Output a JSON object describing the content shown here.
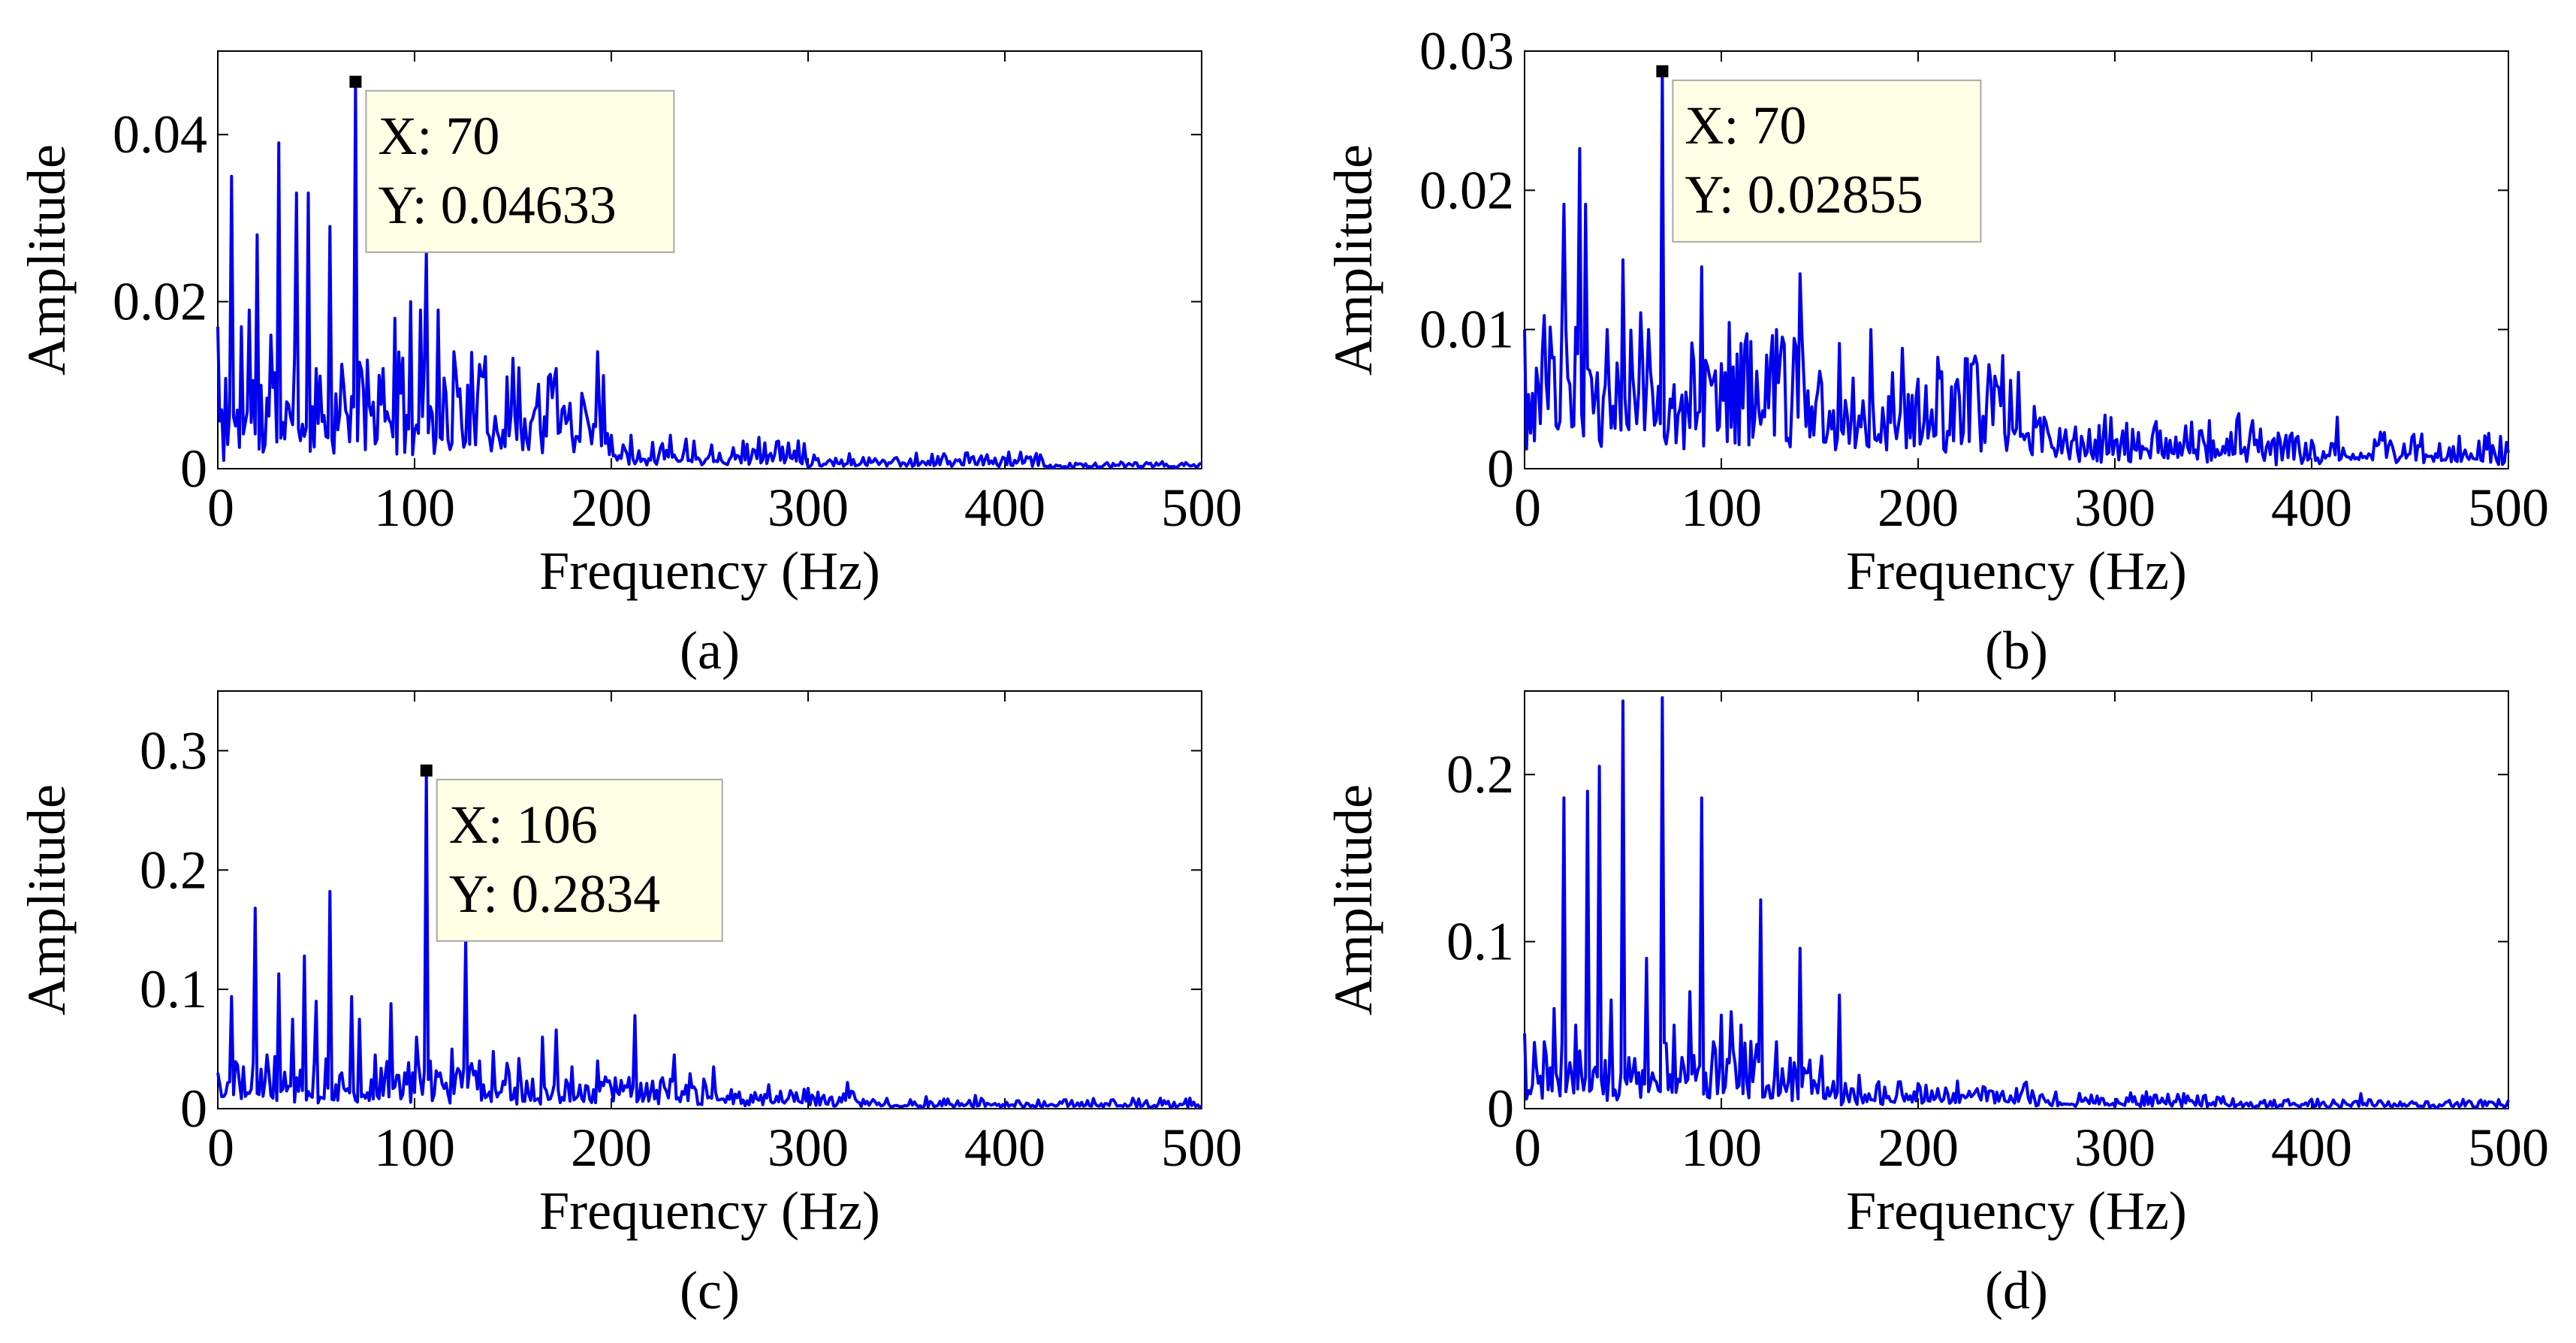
{
  "figure": {
    "description_free": true
  },
  "colors": {
    "line": "#0000ee",
    "callout_bg": "#ffffe6",
    "callout_border": "#a8a8a8",
    "marker": "#000000"
  },
  "chart_data": [
    {
      "id": "a",
      "type": "line",
      "panel_label": "(a)",
      "xlabel": "Frequency (Hz)",
      "ylabel": "Amplitude",
      "xlim": [
        0,
        500
      ],
      "ylim": [
        0,
        0.05
      ],
      "xticks": [
        0,
        100,
        200,
        300,
        400,
        500
      ],
      "xtick_labels": [
        "0",
        "100",
        "200",
        "300",
        "400",
        "500"
      ],
      "yticks": [
        0,
        0.02,
        0.04
      ],
      "ytick_labels": [
        "0",
        "0.02",
        "0.04"
      ],
      "series": [
        {
          "name": "spectrum",
          "noise": {
            "seed": 11,
            "segments": [
              [
                0,
                0.01,
                200
              ],
              [
                200,
                0.0028,
                300
              ],
              [
                300,
                0.0014,
                420
              ],
              [
                420,
                0.0006,
                500
              ]
            ]
          },
          "peaks": [
            [
              0,
              0.017
            ],
            [
              3,
              0.001
            ],
            [
              7,
              0.035
            ],
            [
              12,
              0.017
            ],
            [
              16,
              0.019
            ],
            [
              20,
              0.028
            ],
            [
              23,
              0.002
            ],
            [
              27,
              0.016
            ],
            [
              31,
              0.039
            ],
            [
              35,
              0.008
            ],
            [
              40,
              0.033
            ],
            [
              46,
              0.033
            ],
            [
              50,
              0.012
            ],
            [
              57,
              0.029
            ],
            [
              64,
              0.01
            ],
            [
              70,
              0.04633
            ],
            [
              76,
              0.013
            ],
            [
              84,
              0.012
            ],
            [
              90,
              0.018
            ],
            [
              98,
              0.02
            ],
            [
              103,
              0.019
            ],
            [
              106,
              0.026
            ],
            [
              112,
              0.019
            ],
            [
              120,
              0.014
            ],
            [
              127,
              0.01
            ],
            [
              135,
              0.011
            ],
            [
              147,
              0.011
            ],
            [
              160,
              0.006
            ],
            [
              172,
              0.012
            ],
            [
              180,
              0.004
            ],
            [
              193,
              0.014
            ],
            [
              200,
              0.004
            ],
            [
              210,
              0.004
            ],
            [
              230,
              0.004
            ]
          ]
        }
      ],
      "callout": {
        "x_label": "X: 70",
        "y_label": "Y: 0.04633",
        "x": 70,
        "y": 0.04633
      }
    },
    {
      "id": "b",
      "type": "line",
      "panel_label": "(b)",
      "xlabel": "Frequency (Hz)",
      "ylabel": "Amplitude",
      "xlim": [
        0,
        500
      ],
      "ylim": [
        0,
        0.03
      ],
      "xticks": [
        0,
        100,
        200,
        300,
        400,
        500
      ],
      "xtick_labels": [
        "0",
        "100",
        "200",
        "300",
        "400",
        "500"
      ],
      "yticks": [
        0,
        0.01,
        0.02,
        0.03
      ],
      "ytick_labels": [
        "0",
        "0.01",
        "0.02",
        "0.03"
      ],
      "series": [
        {
          "name": "spectrum",
          "noise": {
            "seed": 23,
            "segments": [
              [
                0,
                0.008,
                150
              ],
              [
                150,
                0.006,
                260
              ],
              [
                260,
                0.0028,
                380
              ],
              [
                380,
                0.0018,
                500
              ]
            ]
          },
          "peaks": [
            [
              0,
              0.01
            ],
            [
              5,
              0.002
            ],
            [
              10,
              0.011
            ],
            [
              15,
              0.008
            ],
            [
              20,
              0.019
            ],
            [
              24,
              0.003
            ],
            [
              28,
              0.023
            ],
            [
              31,
              0.019
            ],
            [
              35,
              0.004
            ],
            [
              42,
              0.01
            ],
            [
              50,
              0.015
            ],
            [
              56,
              0.005
            ],
            [
              63,
              0.01
            ],
            [
              70,
              0.02855
            ],
            [
              74,
              0.005
            ],
            [
              90,
              0.0145
            ],
            [
              95,
              0.006
            ],
            [
              104,
              0.0105
            ],
            [
              110,
              0.009
            ],
            [
              118,
              0.007
            ],
            [
              130,
              0.008
            ],
            [
              140,
              0.014
            ],
            [
              150,
              0.007
            ],
            [
              160,
              0.009
            ],
            [
              176,
              0.01
            ],
            [
              193,
              0.005
            ],
            [
              210,
              0.008
            ],
            [
              230,
              0.0075
            ],
            [
              240,
              0.006
            ],
            [
              260,
              0.003
            ],
            [
              280,
              0.003
            ],
            [
              300,
              0.002
            ],
            [
              350,
              0.002
            ],
            [
              380,
              0.002
            ],
            [
              413,
              0.0037
            ],
            [
              440,
              0.002
            ],
            [
              470,
              0.0015
            ]
          ]
        }
      ],
      "callout": {
        "x_label": "X: 70",
        "y_label": "Y: 0.02855",
        "x": 70,
        "y": 0.02855
      }
    },
    {
      "id": "c",
      "type": "line",
      "panel_label": "(c)",
      "xlabel": "Frequency (Hz)",
      "ylabel": "Amplitude",
      "xlim": [
        0,
        500
      ],
      "ylim": [
        0,
        0.35
      ],
      "xticks": [
        0,
        100,
        200,
        300,
        400,
        500
      ],
      "xtick_labels": [
        "0",
        "100",
        "200",
        "300",
        "400",
        "500"
      ],
      "yticks": [
        0,
        0.1,
        0.2,
        0.3
      ],
      "ytick_labels": [
        "0",
        "0.1",
        "0.2",
        "0.3"
      ],
      "series": [
        {
          "name": "spectrum",
          "noise": {
            "seed": 37,
            "segments": [
              [
                0,
                0.03,
                150
              ],
              [
                150,
                0.02,
                250
              ],
              [
                250,
                0.012,
                330
              ],
              [
                330,
                0.006,
                500
              ]
            ]
          },
          "peaks": [
            [
              0,
              0.03
            ],
            [
              7,
              0.094
            ],
            [
              13,
              0.035
            ],
            [
              19,
              0.168
            ],
            [
              25,
              0.045
            ],
            [
              31,
              0.113
            ],
            [
              38,
              0.075
            ],
            [
              44,
              0.128
            ],
            [
              50,
              0.09
            ],
            [
              57,
              0.182
            ],
            [
              63,
              0.03
            ],
            [
              68,
              0.094
            ],
            [
              72,
              0.075
            ],
            [
              80,
              0.045
            ],
            [
              88,
              0.088
            ],
            [
              95,
              0.03
            ],
            [
              101,
              0.06
            ],
            [
              106,
              0.2834
            ],
            [
              113,
              0.03
            ],
            [
              119,
              0.05
            ],
            [
              126,
              0.142
            ],
            [
              133,
              0.04
            ],
            [
              140,
              0.048
            ],
            [
              147,
              0.038
            ],
            [
              153,
              0.042
            ],
            [
              165,
              0.06
            ],
            [
              172,
              0.066
            ],
            [
              180,
              0.035
            ],
            [
              193,
              0.04
            ],
            [
              212,
              0.078
            ],
            [
              232,
              0.045
            ],
            [
              252,
              0.035
            ],
            [
              280,
              0.02
            ],
            [
              300,
              0.017
            ],
            [
              320,
              0.022
            ],
            [
              360,
              0.01
            ],
            [
              385,
              0.011
            ],
            [
              420,
              0.006
            ]
          ]
        }
      ],
      "callout": {
        "x_label": "X: 106",
        "y_label": "Y: 0.2834",
        "x": 106,
        "y": 0.2834
      }
    },
    {
      "id": "d",
      "type": "line",
      "panel_label": "(d)",
      "xlabel": "Frequency (Hz)",
      "ylabel": "Amplitude",
      "xlim": [
        0,
        500
      ],
      "ylim": [
        0,
        0.25
      ],
      "xticks": [
        0,
        100,
        200,
        300,
        400,
        500
      ],
      "xtick_labels": [
        "0",
        "100",
        "200",
        "300",
        "400",
        "500"
      ],
      "yticks": [
        0,
        0.1,
        0.2
      ],
      "ytick_labels": [
        "0",
        "0.1",
        "0.2"
      ],
      "series": [
        {
          "name": "spectrum",
          "noise": {
            "seed": 51,
            "segments": [
              [
                0,
                0.03,
                160
              ],
              [
                160,
                0.012,
                260
              ],
              [
                260,
                0.007,
                360
              ],
              [
                360,
                0.004,
                500
              ]
            ]
          },
          "peaks": [
            [
              0,
              0.045
            ],
            [
              6,
              0.025
            ],
            [
              10,
              0.04
            ],
            [
              15,
              0.06
            ],
            [
              20,
              0.186
            ],
            [
              26,
              0.05
            ],
            [
              32,
              0.19
            ],
            [
              38,
              0.205
            ],
            [
              44,
              0.065
            ],
            [
              50,
              0.244
            ],
            [
              56,
              0.03
            ],
            [
              62,
              0.09
            ],
            [
              70,
              0.246
            ],
            [
              76,
              0.05
            ],
            [
              84,
              0.07
            ],
            [
              90,
              0.186
            ],
            [
              96,
              0.04
            ],
            [
              100,
              0.056
            ],
            [
              105,
              0.058
            ],
            [
              110,
              0.05
            ],
            [
              120,
              0.125
            ],
            [
              128,
              0.04
            ],
            [
              140,
              0.096
            ],
            [
              150,
              0.02
            ],
            [
              160,
              0.068
            ],
            [
              170,
              0.02
            ],
            [
              190,
              0.016
            ],
            [
              230,
              0.012
            ],
            [
              270,
              0.01
            ],
            [
              320,
              0.008
            ],
            [
              360,
              0.006
            ],
            [
              425,
              0.009
            ],
            [
              470,
              0.005
            ]
          ]
        }
      ],
      "callout": null
    }
  ]
}
